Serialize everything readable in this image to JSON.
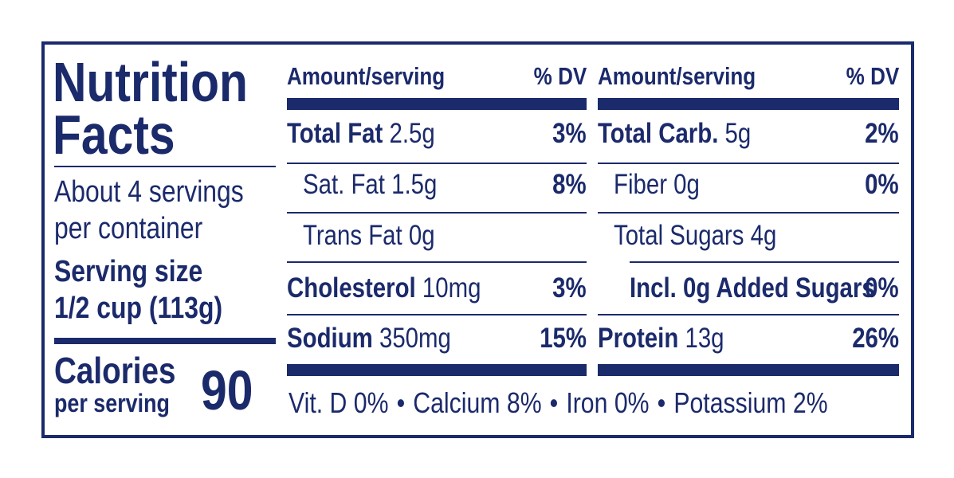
{
  "title": "Nutrition Facts",
  "servings": [
    "About 4 servings",
    "per container"
  ],
  "serving_size": {
    "label": "Serving size",
    "value": "1/2 cup (113g)"
  },
  "calories": {
    "label": "Calories",
    "sub": "per serving",
    "value": "90"
  },
  "columns": [
    {
      "header": {
        "amount": "Amount/serving",
        "dv": "% DV"
      },
      "rows": [
        {
          "name": "Total Fat",
          "amount": "2.5g",
          "dv": "3%"
        },
        {
          "name": "Sat. Fat",
          "amount": "1.5g",
          "dv": "8%"
        },
        {
          "name": "Trans Fat",
          "amount": "0g"
        },
        {
          "name": "Cholesterol",
          "amount": "10mg",
          "dv": "3%"
        },
        {
          "name": "Sodium",
          "amount": "350mg",
          "dv": "15%"
        }
      ]
    },
    {
      "header": {
        "amount": "Amount/serving",
        "dv": "% DV"
      },
      "rows": [
        {
          "name": "Total Carb.",
          "amount": "5g",
          "dv": "2%"
        },
        {
          "name": "Fiber",
          "amount": "0g",
          "dv": "0%"
        },
        {
          "name": "Total Sugars",
          "amount": "4g"
        },
        {
          "name": "Incl. 0g Added Sugars",
          "dv": "0%"
        },
        {
          "name": "Protein",
          "amount": "13g",
          "dv": "26%"
        }
      ]
    }
  ],
  "footer": [
    "Vit. D 0%",
    "Calcium 8%",
    "Iron 0%",
    "Potassium 2%"
  ]
}
